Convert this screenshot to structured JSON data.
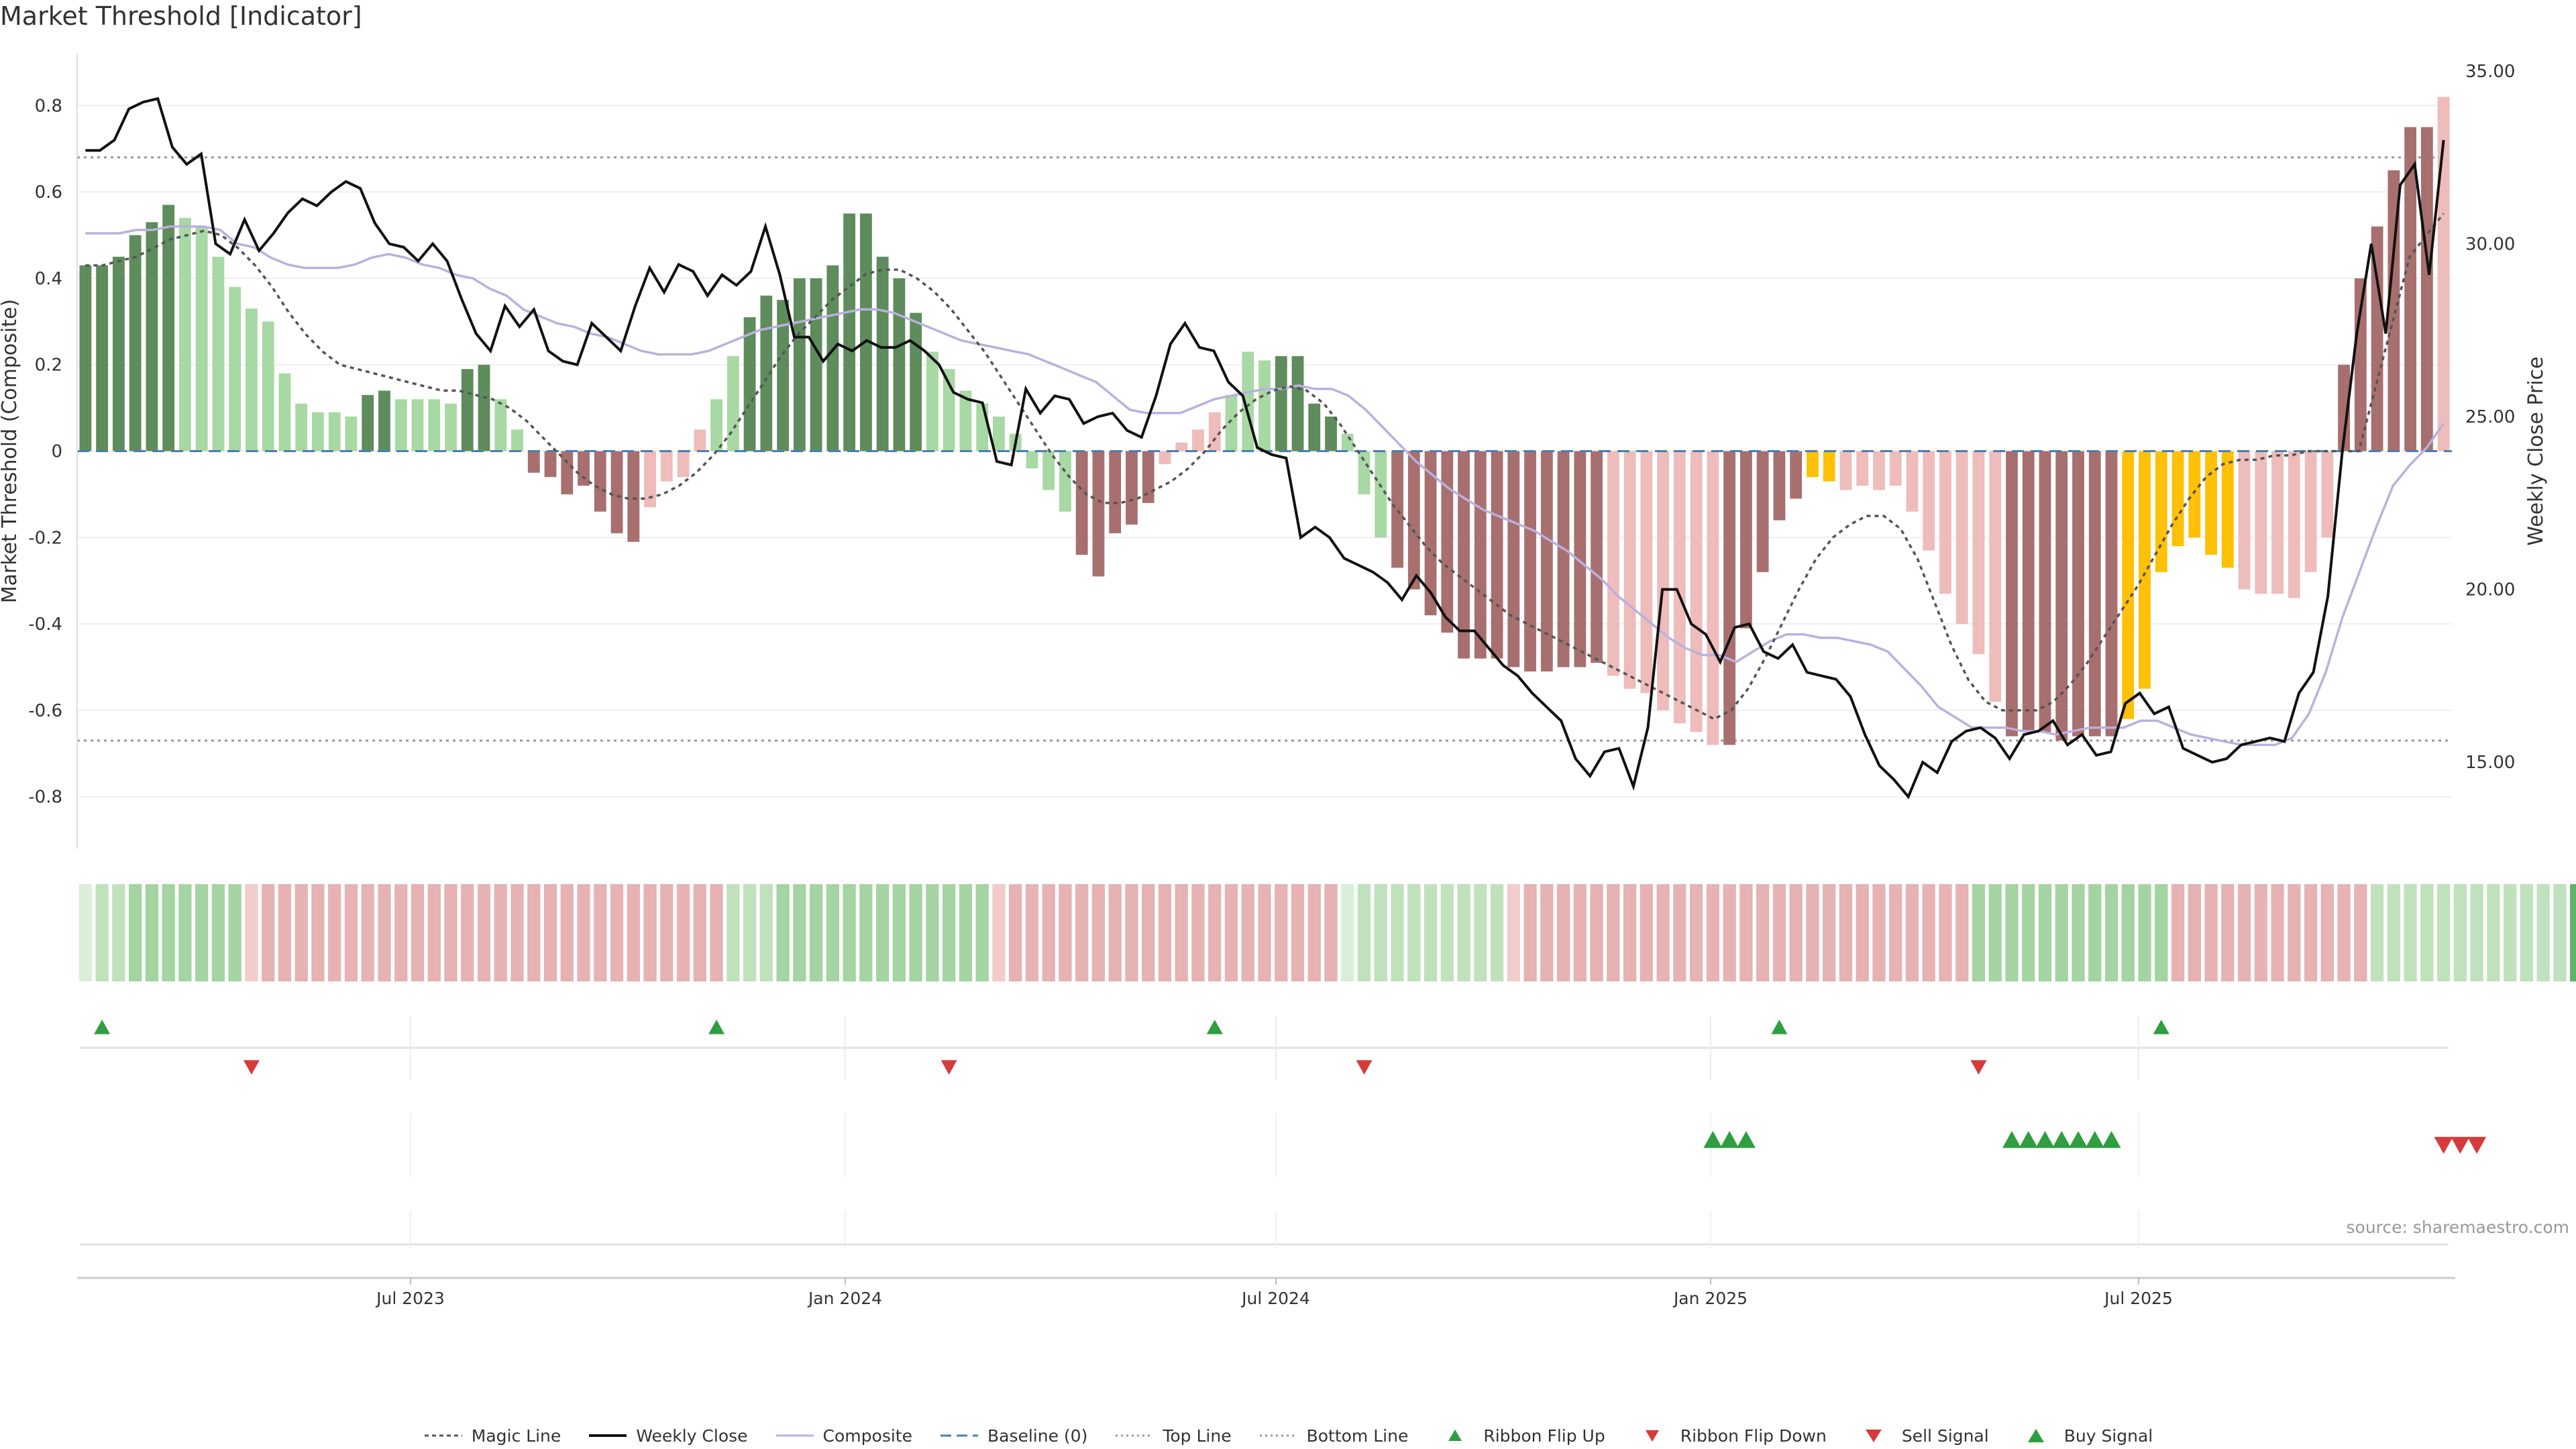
{
  "title": "Market Threshold [Indicator]",
  "source": "source: sharemaestro.com",
  "colors": {
    "strong_green": "#5e8c5c",
    "light_green": "#a8d8a3",
    "strong_red": "#a86f6f",
    "light_red": "#eebcbb",
    "gold": "#ffc107",
    "weekly_close": "#111111",
    "composite": "#bbb0dd",
    "magic": "#555555",
    "baseline": "#4a7fb0",
    "threshold": "#999999",
    "signal_up": "#2e9e40",
    "signal_down": "#d63a3a"
  },
  "chart_data": {
    "type": "bar",
    "title": "Market Threshold [Indicator]",
    "ylabel_left": "Market Threshold (Composite)",
    "ylabel_right": "Weekly Close Price",
    "y_left_ticks": [
      "0.8",
      "0.6",
      "0.4",
      "0.2",
      "0",
      "-0.2",
      "-0.4",
      "-0.6",
      "-0.8"
    ],
    "y_right_ticks": [
      "35.00",
      "30.00",
      "25.00",
      "20.00",
      "15.00"
    ],
    "x_ticks": [
      "Jul 2023",
      "Jan 2024",
      "Jul 2024",
      "Jan 2025",
      "Jul 2025"
    ],
    "top_line": 0.68,
    "bottom_line": -0.67,
    "baseline": 0,
    "y_left_range": [
      -0.92,
      0.92
    ],
    "y_right_range": [
      12.5,
      35.5
    ],
    "bars": [
      0.43,
      0.43,
      0.45,
      0.5,
      0.53,
      0.57,
      0.54,
      0.52,
      0.45,
      0.38,
      0.33,
      0.3,
      0.18,
      0.11,
      0.09,
      0.09,
      0.08,
      0.13,
      0.14,
      0.12,
      0.12,
      0.12,
      0.11,
      0.19,
      0.2,
      0.12,
      0.05,
      -0.05,
      -0.06,
      -0.1,
      -0.08,
      -0.14,
      -0.19,
      -0.21,
      -0.13,
      -0.07,
      -0.06,
      0.05,
      0.12,
      0.22,
      0.31,
      0.36,
      0.35,
      0.4,
      0.4,
      0.43,
      0.55,
      0.55,
      0.45,
      0.4,
      0.32,
      0.23,
      0.19,
      0.14,
      0.11,
      0.08,
      0.04,
      -0.04,
      -0.09,
      -0.14,
      -0.24,
      -0.29,
      -0.19,
      -0.17,
      -0.12,
      -0.03,
      0.02,
      0.05,
      0.09,
      0.13,
      0.23,
      0.21,
      0.22,
      0.22,
      0.11,
      0.08,
      0.04,
      -0.1,
      -0.2,
      -0.27,
      -0.32,
      -0.38,
      -0.42,
      -0.48,
      -0.48,
      -0.48,
      -0.5,
      -0.51,
      -0.51,
      -0.5,
      -0.5,
      -0.49,
      -0.52,
      -0.55,
      -0.56,
      -0.6,
      -0.63,
      -0.65,
      -0.68,
      -0.68,
      -0.41,
      -0.28,
      -0.16,
      -0.11,
      -0.06,
      -0.07,
      -0.09,
      -0.08,
      -0.09,
      -0.08,
      -0.14,
      -0.23,
      -0.33,
      -0.4,
      -0.47,
      -0.58,
      -0.66,
      -0.65,
      -0.65,
      -0.67,
      -0.66,
      -0.66,
      -0.66,
      -0.62,
      -0.55,
      -0.28,
      -0.22,
      -0.2,
      -0.24,
      -0.27,
      -0.32,
      -0.33,
      -0.33,
      -0.34,
      -0.28,
      -0.2,
      0.2,
      0.4,
      0.52,
      0.65,
      0.75,
      0.75,
      0.82
    ],
    "bar_classes": "GGGGGGLLLLLLLLLLLGGLLLLGGLLRRRRRRRPPPPLLGGGGGGGGGGGLLLLLLLLLRRRRRPPPPLLLGGGGLLLRRRRRRRRRRRRRPPPPPPPRRRRRYYPPPPPPPPPPRRRRRRRYYYYYYYPPPPPPRRRRRRPPGGGGYYY",
    "weekly_close": [
      32.7,
      32.7,
      33.0,
      33.9,
      34.1,
      34.2,
      32.8,
      32.3,
      32.6,
      30.0,
      29.7,
      30.7,
      29.8,
      30.3,
      30.9,
      31.3,
      31.1,
      31.5,
      31.8,
      31.6,
      30.6,
      30.0,
      29.9,
      29.5,
      30.0,
      29.5,
      28.4,
      27.4,
      26.9,
      28.2,
      27.6,
      28.1,
      26.9,
      26.6,
      26.5,
      27.7,
      27.3,
      26.9,
      28.2,
      29.3,
      28.6,
      29.4,
      29.2,
      28.5,
      29.1,
      28.8,
      29.2,
      30.5,
      29.1,
      27.3,
      27.3,
      26.6,
      27.1,
      26.9,
      27.2,
      27.0,
      27.0,
      27.2,
      26.9,
      26.5,
      25.7,
      25.5,
      25.4,
      23.7,
      23.6,
      25.8,
      25.1,
      25.6,
      25.5,
      24.8,
      25.0,
      25.1,
      24.6,
      24.4,
      25.6,
      27.1,
      27.7,
      27.0,
      26.9,
      26.0,
      25.6,
      24.1,
      23.9,
      23.8,
      21.5,
      21.8,
      21.5,
      20.9,
      20.7,
      20.5,
      20.2,
      19.7,
      20.4,
      19.9,
      19.2,
      18.8,
      18.8,
      18.3,
      17.8,
      17.5,
      17.0,
      16.6,
      16.2,
      15.1,
      14.6,
      15.3,
      15.4,
      14.3,
      16.0,
      20.0,
      20.0,
      19.0,
      18.7,
      17.9,
      18.9,
      19.0,
      18.2,
      18.0,
      18.4,
      17.6,
      17.5,
      17.4,
      16.9,
      15.8,
      14.9,
      14.5,
      14.0,
      15.0,
      14.7,
      15.6,
      15.9,
      16.0,
      15.7,
      15.1,
      15.8,
      15.9,
      16.2,
      15.5,
      15.8,
      15.2,
      15.3,
      16.7,
      17.0,
      16.4,
      16.6,
      15.4,
      15.2,
      15.0,
      15.1,
      15.5,
      15.6,
      15.7,
      15.6,
      17.0,
      17.6,
      19.8,
      24.0,
      27.4,
      30.0,
      27.4,
      31.7,
      32.3,
      29.1,
      33.0
    ],
    "magic_line": [
      0.43,
      0.43,
      0.44,
      0.45,
      0.47,
      0.49,
      0.5,
      0.51,
      0.5,
      0.47,
      0.43,
      0.38,
      0.32,
      0.27,
      0.23,
      0.2,
      0.19,
      0.18,
      0.17,
      0.16,
      0.15,
      0.14,
      0.14,
      0.13,
      0.12,
      0.1,
      0.07,
      0.03,
      -0.01,
      -0.05,
      -0.08,
      -0.1,
      -0.11,
      -0.11,
      -0.1,
      -0.08,
      -0.05,
      -0.01,
      0.04,
      0.1,
      0.16,
      0.22,
      0.27,
      0.31,
      0.35,
      0.38,
      0.41,
      0.42,
      0.42,
      0.4,
      0.37,
      0.33,
      0.28,
      0.23,
      0.17,
      0.11,
      0.05,
      -0.01,
      -0.06,
      -0.1,
      -0.12,
      -0.12,
      -0.11,
      -0.09,
      -0.07,
      -0.04,
      0.0,
      0.05,
      0.09,
      0.12,
      0.14,
      0.15,
      0.14,
      0.11,
      0.06,
      0.0,
      -0.06,
      -0.12,
      -0.17,
      -0.22,
      -0.26,
      -0.29,
      -0.32,
      -0.35,
      -0.38,
      -0.4,
      -0.42,
      -0.44,
      -0.46,
      -0.48,
      -0.5,
      -0.52,
      -0.54,
      -0.56,
      -0.58,
      -0.6,
      -0.62,
      -0.6,
      -0.55,
      -0.48,
      -0.4,
      -0.32,
      -0.25,
      -0.2,
      -0.17,
      -0.15,
      -0.15,
      -0.18,
      -0.25,
      -0.35,
      -0.45,
      -0.53,
      -0.58,
      -0.6,
      -0.6,
      -0.6,
      -0.58,
      -0.54,
      -0.49,
      -0.43,
      -0.37,
      -0.31,
      -0.24,
      -0.17,
      -0.11,
      -0.06,
      -0.03,
      -0.02,
      -0.02,
      -0.01,
      -0.01,
      0.0,
      0.0,
      0.0,
      0.0,
      0.15,
      0.3,
      0.45,
      0.5,
      0.55
    ],
    "composite": [
      30.3,
      30.3,
      30.3,
      30.4,
      30.4,
      30.5,
      30.5,
      30.5,
      30.4,
      30.0,
      29.9,
      29.6,
      29.4,
      29.3,
      29.3,
      29.3,
      29.4,
      29.6,
      29.7,
      29.6,
      29.4,
      29.3,
      29.1,
      29.0,
      28.7,
      28.5,
      28.1,
      27.9,
      27.7,
      27.6,
      27.4,
      27.3,
      27.1,
      26.9,
      26.8,
      26.8,
      26.8,
      26.9,
      27.1,
      27.3,
      27.5,
      27.6,
      27.7,
      27.8,
      27.9,
      28.0,
      28.1,
      28.1,
      28.0,
      27.8,
      27.6,
      27.4,
      27.2,
      27.1,
      27.0,
      26.9,
      26.8,
      26.6,
      26.4,
      26.2,
      26.0,
      25.6,
      25.2,
      25.1,
      25.1,
      25.1,
      25.3,
      25.5,
      25.6,
      25.7,
      25.8,
      25.8,
      25.9,
      25.8,
      25.8,
      25.6,
      25.2,
      24.7,
      24.2,
      23.7,
      23.3,
      22.9,
      22.6,
      22.3,
      22.1,
      21.9,
      21.7,
      21.4,
      21.1,
      20.7,
      20.3,
      19.8,
      19.4,
      19.0,
      18.6,
      18.3,
      18.1,
      18.1,
      17.9,
      18.2,
      18.5,
      18.7,
      18.7,
      18.6,
      18.6,
      18.5,
      18.4,
      18.2,
      17.7,
      17.2,
      16.6,
      16.3,
      16.0,
      16.0,
      16.0,
      15.9,
      15.9,
      15.8,
      15.9,
      16.0,
      16.0,
      16.0,
      16.2,
      16.2,
      16.0,
      15.8,
      15.7,
      15.6,
      15.5,
      15.5,
      15.5,
      15.7,
      16.4,
      17.6,
      19.2,
      20.5,
      21.8,
      23.0,
      23.6,
      24.1,
      24.8
    ],
    "ribbon_strength": [
      1,
      2,
      2,
      3,
      3,
      3,
      3,
      3,
      3,
      3,
      -1,
      -2,
      -2,
      -2,
      -2,
      -2,
      -2,
      -2,
      -2,
      -2,
      -2,
      -2,
      -2,
      -2,
      -2,
      -2,
      -2,
      -2,
      -2,
      -2,
      -2,
      -2,
      -2,
      -2,
      -2,
      -2,
      -2,
      -2,
      -2,
      2,
      2,
      2,
      3,
      3,
      3,
      3,
      3,
      3,
      3,
      3,
      3,
      3,
      3,
      3,
      3,
      -1,
      -2,
      -2,
      -2,
      -2,
      -2,
      -2,
      -2,
      -2,
      -2,
      -2,
      -2,
      -2,
      -2,
      -2,
      -2,
      -2,
      -2,
      -2,
      -2,
      -2,
      1,
      2,
      2,
      2,
      2,
      2,
      2,
      2,
      2,
      2,
      -1,
      -2,
      -2,
      -2,
      -2,
      -2,
      -2,
      -2,
      -2,
      -2,
      -2,
      -2,
      -2,
      -2,
      -2,
      -2,
      -2,
      -2,
      -2,
      -2,
      -2,
      -2,
      -2,
      -2,
      -2,
      -2,
      -2,
      -2,
      3,
      3,
      3,
      3,
      3,
      3,
      3,
      3,
      3,
      3,
      3,
      3,
      -2,
      -2,
      -2,
      -2,
      -2,
      -2,
      -2,
      -2,
      -2,
      -2,
      -2,
      -2,
      2,
      2,
      2,
      2,
      2,
      2,
      2,
      2,
      2,
      2,
      2,
      2,
      4,
      4,
      4,
      5,
      5,
      5,
      5
    ],
    "ribbon_flip_up_idx": [
      1,
      38,
      68,
      102,
      125
    ],
    "ribbon_flip_down_idx": [
      10,
      52,
      77,
      114
    ],
    "buy_signal_idx": [
      98,
      99,
      100,
      116,
      117,
      118,
      119,
      120,
      121,
      122
    ],
    "sell_signal_idx": [
      142,
      143,
      144
    ]
  },
  "legend": [
    {
      "key": "magic",
      "label": "Magic Line"
    },
    {
      "key": "close",
      "label": "Weekly Close"
    },
    {
      "key": "composite",
      "label": "Composite"
    },
    {
      "key": "baseline",
      "label": "Baseline (0)"
    },
    {
      "key": "top",
      "label": "Top Line"
    },
    {
      "key": "bottom",
      "label": "Bottom Line"
    },
    {
      "key": "flipup",
      "label": "Ribbon Flip Up"
    },
    {
      "key": "flipdown",
      "label": "Ribbon Flip Down"
    },
    {
      "key": "sell",
      "label": "Sell Signal"
    },
    {
      "key": "buy",
      "label": "Buy Signal"
    }
  ]
}
